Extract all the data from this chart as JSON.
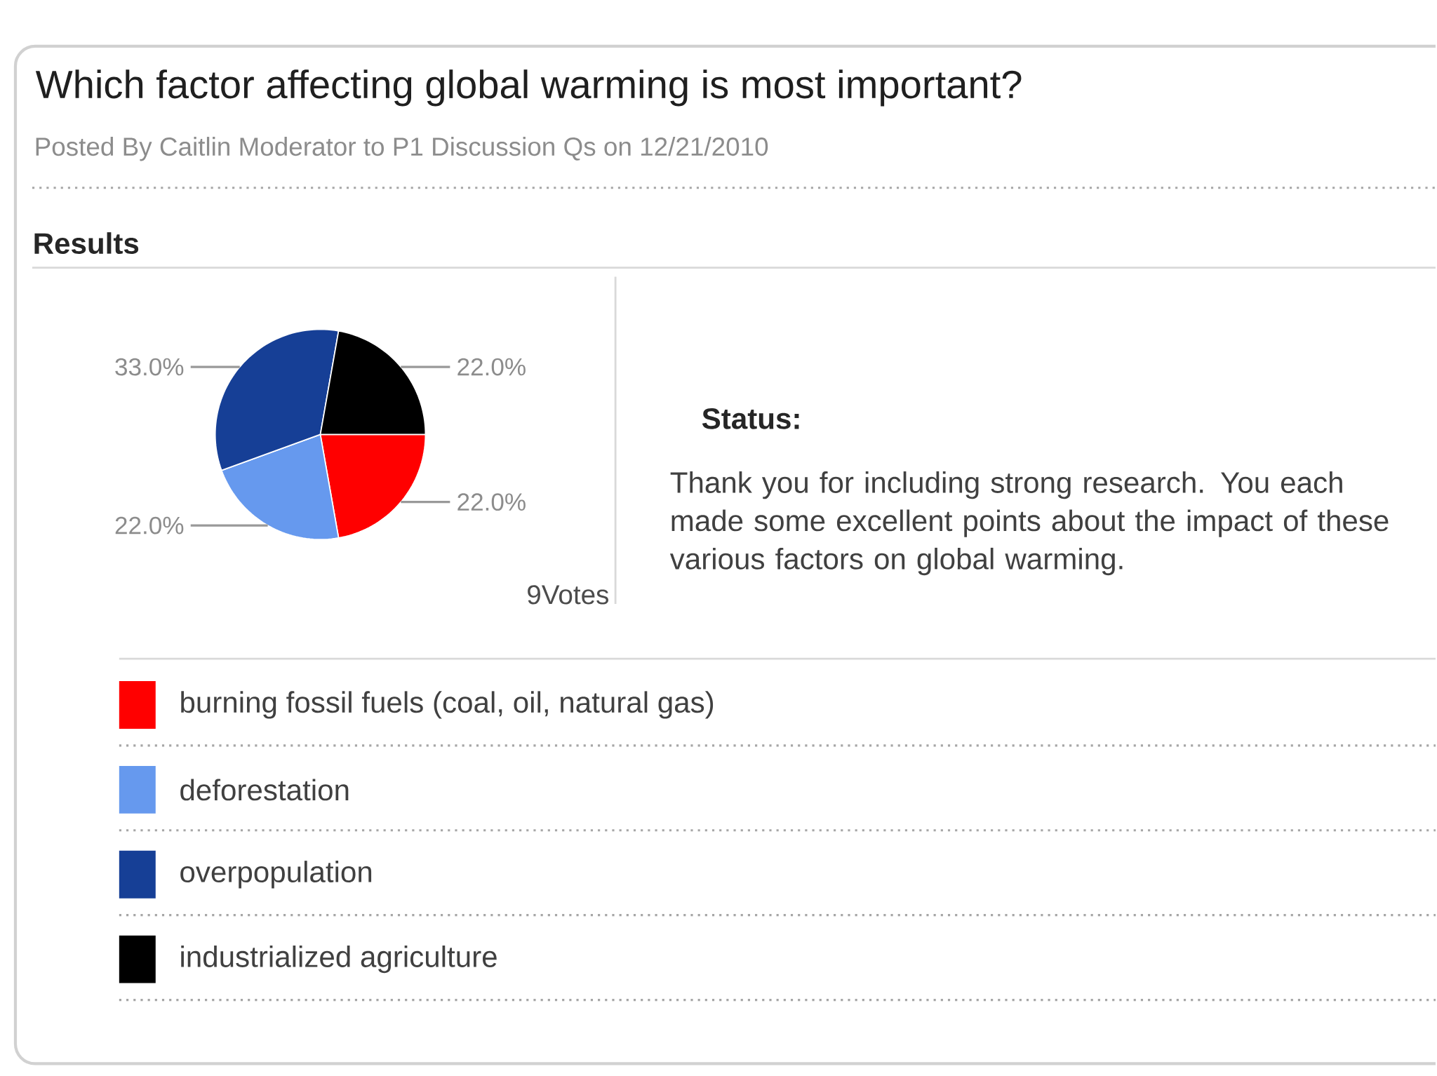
{
  "chart_data": {
    "type": "pie",
    "title": "Which factor affecting global warming is most important?",
    "subtitle": "Posted By Caitlin Moderator to P1 Discussion Qs on 12/21/2010",
    "categories": [
      "burning fossil fuels (coal, oil, natural gas)",
      "deforestation",
      "overpopulation",
      "industrialized agriculture"
    ],
    "values": [
      22.0,
      22.0,
      33.0,
      22.0
    ],
    "colors": [
      "#ff0000",
      "#6699ee",
      "#163f96",
      "#000000"
    ],
    "value_labels": [
      "22.0%",
      "22.0%",
      "33.0%",
      "22.0%"
    ],
    "legend": "bottom",
    "annotations": [
      "Results",
      "9Votes",
      "Status:",
      "Thank you for including strong research. You each made some excellent points about the impact of these various factors on global warming."
    ]
  }
}
